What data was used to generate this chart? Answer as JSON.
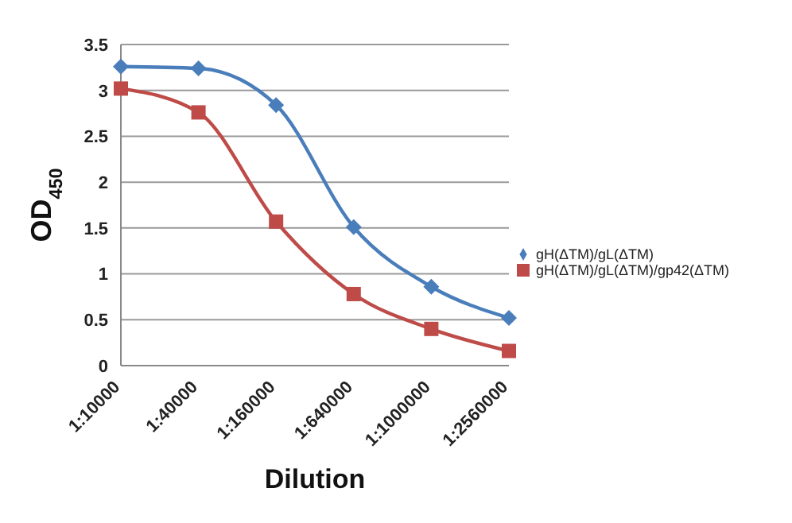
{
  "chart_data": {
    "type": "line",
    "xlabel": "Dilution",
    "ylabel": "OD$_{450}$",
    "categories": [
      "1:10000",
      "1:40000",
      "1:160000",
      "1:640000",
      "1:1000000",
      "1:2560000"
    ],
    "series": [
      {
        "name": "gH(ΔTM)/gL(ΔTM)",
        "color": "#4a7ebb",
        "marker": "diamond",
        "values": [
          3.26,
          3.24,
          2.84,
          1.51,
          0.86,
          0.52
        ]
      },
      {
        "name": "gH(ΔTM)/gL(ΔTM)/gp42(ΔTM)",
        "color": "#be4b48",
        "marker": "square",
        "values": [
          3.02,
          2.76,
          1.57,
          0.78,
          0.4,
          0.16
        ]
      }
    ],
    "ylim": [
      0,
      3.5
    ],
    "yticks": [
      0,
      0.5,
      1,
      1.5,
      2,
      2.5,
      3,
      3.5
    ],
    "grid": "y",
    "legend": "right"
  }
}
